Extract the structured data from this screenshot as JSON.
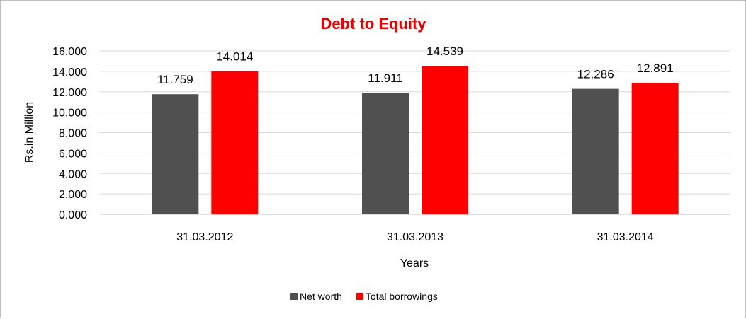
{
  "chart_data": {
    "type": "bar",
    "title": "Debt to Equity",
    "xlabel": "Years",
    "ylabel": "Rs.in Million",
    "categories": [
      "31.03.2012",
      "31.03.2013",
      "31.03.2014"
    ],
    "series": [
      {
        "name": "Net worth",
        "color": "#505050",
        "values": [
          11.759,
          11.911,
          12.286
        ],
        "labels": [
          "11.759",
          "11.911",
          "12.286"
        ]
      },
      {
        "name": "Total borrowings",
        "color": "#ff0000",
        "values": [
          14.014,
          14.539,
          12.891
        ],
        "labels": [
          "14.014",
          "14.539",
          "12.891"
        ]
      }
    ],
    "ylim": [
      0,
      16
    ],
    "yticks": [
      0,
      2,
      4,
      6,
      8,
      10,
      12,
      14,
      16
    ],
    "ytick_labels": [
      "0.000",
      "2.000",
      "4.000",
      "6.000",
      "8.000",
      "10.000",
      "12.000",
      "14.000",
      "16.000"
    ],
    "grid": true,
    "legend_position": "bottom",
    "title_color": "#e60000"
  }
}
